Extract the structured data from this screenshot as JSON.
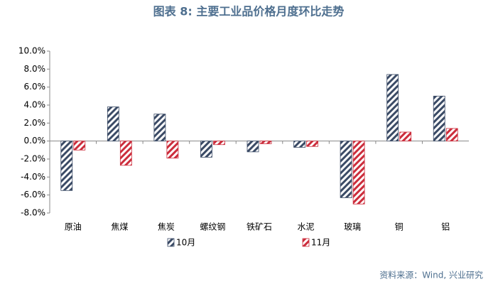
{
  "chart_data": {
    "type": "bar",
    "title": "图表 8:  主要工业品价格月度环比走势",
    "source": "资料来源：Wind, 兴业研究",
    "categories": [
      "原油",
      "焦煤",
      "焦炭",
      "螺纹钢",
      "铁矿石",
      "水泥",
      "玻璃",
      "铜",
      "铝"
    ],
    "series": [
      {
        "name": "10月",
        "color": "#3b4b66",
        "values": [
          -5.5,
          3.8,
          3.0,
          -1.8,
          -1.2,
          -0.7,
          -6.3,
          7.4,
          5.0
        ]
      },
      {
        "name": "11月",
        "color": "#cc2d3c",
        "values": [
          -1.0,
          -2.7,
          -1.9,
          -0.4,
          -0.3,
          -0.6,
          -7.0,
          1.0,
          1.4
        ]
      }
    ],
    "ylim": [
      -8,
      10
    ],
    "yticks": [
      {
        "value": -8,
        "label": "-8.0%"
      },
      {
        "value": -6,
        "label": "-6.0%"
      },
      {
        "value": -4,
        "label": "-4.0%"
      },
      {
        "value": -2,
        "label": "-2.0%"
      },
      {
        "value": 0,
        "label": "0.0%"
      },
      {
        "value": 2,
        "label": "2.0%"
      },
      {
        "value": 4,
        "label": "4.0%"
      },
      {
        "value": 6,
        "label": "6.0%"
      },
      {
        "value": 8,
        "label": "8.0%"
      },
      {
        "value": 10,
        "label": "10.0%"
      }
    ],
    "hatched": true
  }
}
